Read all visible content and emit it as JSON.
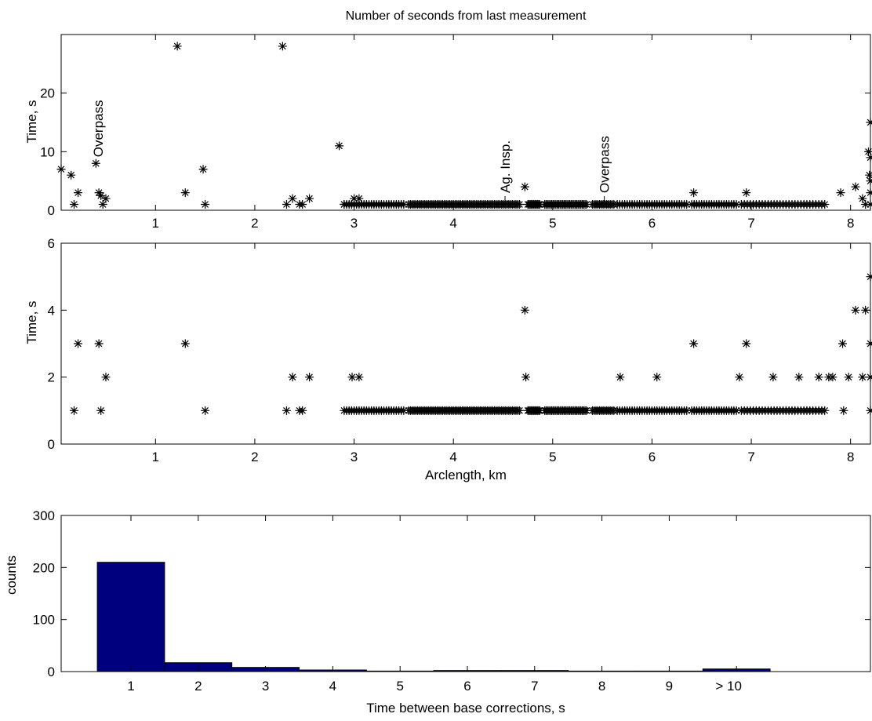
{
  "chart_data": [
    {
      "type": "scatter",
      "title": "Number of seconds from last measurement",
      "xlabel": "",
      "ylabel": "Time, s",
      "xlim": [
        0.05,
        8.2
      ],
      "ylim": [
        0,
        30
      ],
      "xticks": [
        "1",
        "2",
        "3",
        "4",
        "5",
        "6",
        "7",
        "8"
      ],
      "yticks": [
        "0",
        "10",
        "20"
      ],
      "marker": "asterisk",
      "color": "#000000",
      "annotations": [
        {
          "text": "Overpass",
          "x": 0.42,
          "y": 8,
          "arrow": false
        },
        {
          "text": "Ag. Insp.",
          "x": 4.52,
          "y": 0.8,
          "arrow": true
        },
        {
          "text": "Overpass",
          "x": 5.52,
          "y": 0.8,
          "arrow": true
        }
      ],
      "points": [
        [
          0.05,
          7
        ],
        [
          0.15,
          6
        ],
        [
          0.18,
          1
        ],
        [
          0.22,
          3
        ],
        [
          0.4,
          8
        ],
        [
          0.43,
          3
        ],
        [
          0.45,
          2.5
        ],
        [
          0.47,
          1
        ],
        [
          0.5,
          2
        ],
        [
          1.22,
          28
        ],
        [
          1.3,
          3
        ],
        [
          1.48,
          7
        ],
        [
          1.5,
          1
        ],
        [
          2.28,
          28
        ],
        [
          2.32,
          1
        ],
        [
          2.38,
          2
        ],
        [
          2.45,
          1
        ],
        [
          2.48,
          1
        ],
        [
          2.55,
          2
        ],
        [
          2.85,
          11
        ],
        [
          2.9,
          1
        ],
        [
          3.0,
          2
        ],
        [
          3.05,
          2
        ],
        [
          4.72,
          4
        ],
        [
          6.42,
          3
        ],
        [
          6.95,
          3
        ],
        [
          7.9,
          3
        ],
        [
          8.05,
          4
        ],
        [
          8.12,
          2
        ],
        [
          8.15,
          1
        ],
        [
          8.18,
          10
        ],
        [
          8.19,
          6
        ],
        [
          8.2,
          15
        ],
        [
          8.2,
          9
        ],
        [
          8.2,
          5
        ],
        [
          8.2,
          3
        ],
        [
          8.2,
          1
        ]
      ]
    },
    {
      "type": "scatter",
      "title": "",
      "xlabel": "Arclength, km",
      "ylabel": "Time, s",
      "xlim": [
        0.05,
        8.2
      ],
      "ylim": [
        0,
        6
      ],
      "xticks": [
        "1",
        "2",
        "3",
        "4",
        "5",
        "6",
        "7",
        "8"
      ],
      "yticks": [
        "0",
        "2",
        "4",
        "6"
      ],
      "marker": "asterisk",
      "color": "#000000",
      "points": [
        [
          0.18,
          1
        ],
        [
          0.22,
          3
        ],
        [
          0.43,
          3
        ],
        [
          0.45,
          1
        ],
        [
          0.5,
          2
        ],
        [
          1.3,
          3
        ],
        [
          1.5,
          1
        ],
        [
          2.32,
          1
        ],
        [
          2.38,
          2
        ],
        [
          2.45,
          1
        ],
        [
          2.48,
          1
        ],
        [
          2.55,
          2
        ],
        [
          2.98,
          2
        ],
        [
          3.05,
          2
        ],
        [
          4.72,
          4
        ],
        [
          4.73,
          2
        ],
        [
          5.68,
          2
        ],
        [
          6.05,
          2
        ],
        [
          6.42,
          3
        ],
        [
          6.88,
          2
        ],
        [
          6.95,
          3
        ],
        [
          7.22,
          2
        ],
        [
          7.48,
          2
        ],
        [
          7.68,
          2
        ],
        [
          7.78,
          2
        ],
        [
          7.82,
          2
        ],
        [
          7.92,
          3
        ],
        [
          7.93,
          1
        ],
        [
          7.98,
          2
        ],
        [
          8.05,
          4
        ],
        [
          8.12,
          2
        ],
        [
          8.15,
          4
        ],
        [
          8.2,
          5
        ],
        [
          8.2,
          3
        ],
        [
          8.2,
          2
        ],
        [
          8.2,
          1
        ]
      ]
    },
    {
      "type": "bar",
      "title": "",
      "xlabel": "Time between base corrections, s",
      "ylabel": "counts",
      "categories": [
        "1",
        "2",
        "3",
        "4",
        "5",
        "6",
        "7",
        "8",
        "9",
        "> 10"
      ],
      "values": [
        210,
        17,
        8,
        3,
        1,
        2,
        2,
        1,
        1,
        5
      ],
      "ylim": [
        0,
        300
      ],
      "yticks": [
        "0",
        "100",
        "200",
        "300"
      ],
      "color": "#00007f"
    }
  ]
}
